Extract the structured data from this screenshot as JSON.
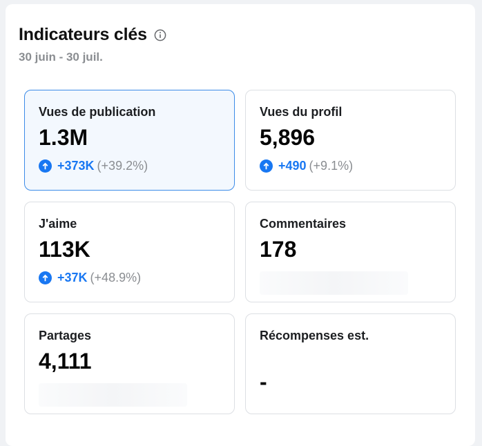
{
  "header": {
    "title": "Indicateurs clés",
    "info_icon": "info-circle-icon",
    "date_range": "30 juin - 30 juil."
  },
  "colors": {
    "accent": "#1877f2",
    "selected_border": "#3b8be8",
    "selected_bg": "#f3f8fe",
    "muted": "#8a8d91"
  },
  "cards": [
    {
      "label": "Vues de publication",
      "value": "1.3M",
      "delta_abs": "+373K",
      "delta_pct": "(+39.2%)",
      "trend_icon": "arrow-up-circle-icon",
      "selected": true
    },
    {
      "label": "Vues du profil",
      "value": "5,896",
      "delta_abs": "+490",
      "delta_pct": "(+9.1%)",
      "trend_icon": "arrow-up-circle-icon",
      "selected": false
    },
    {
      "label": "J'aime",
      "value": "113K",
      "delta_abs": "+37K",
      "delta_pct": "(+48.9%)",
      "trend_icon": "arrow-up-circle-icon",
      "selected": false
    },
    {
      "label": "Commentaires",
      "value": "178",
      "selected": false
    },
    {
      "label": "Partages",
      "value": "4,111",
      "selected": false
    },
    {
      "label": "Récompenses est.",
      "value": "-",
      "selected": false
    }
  ]
}
